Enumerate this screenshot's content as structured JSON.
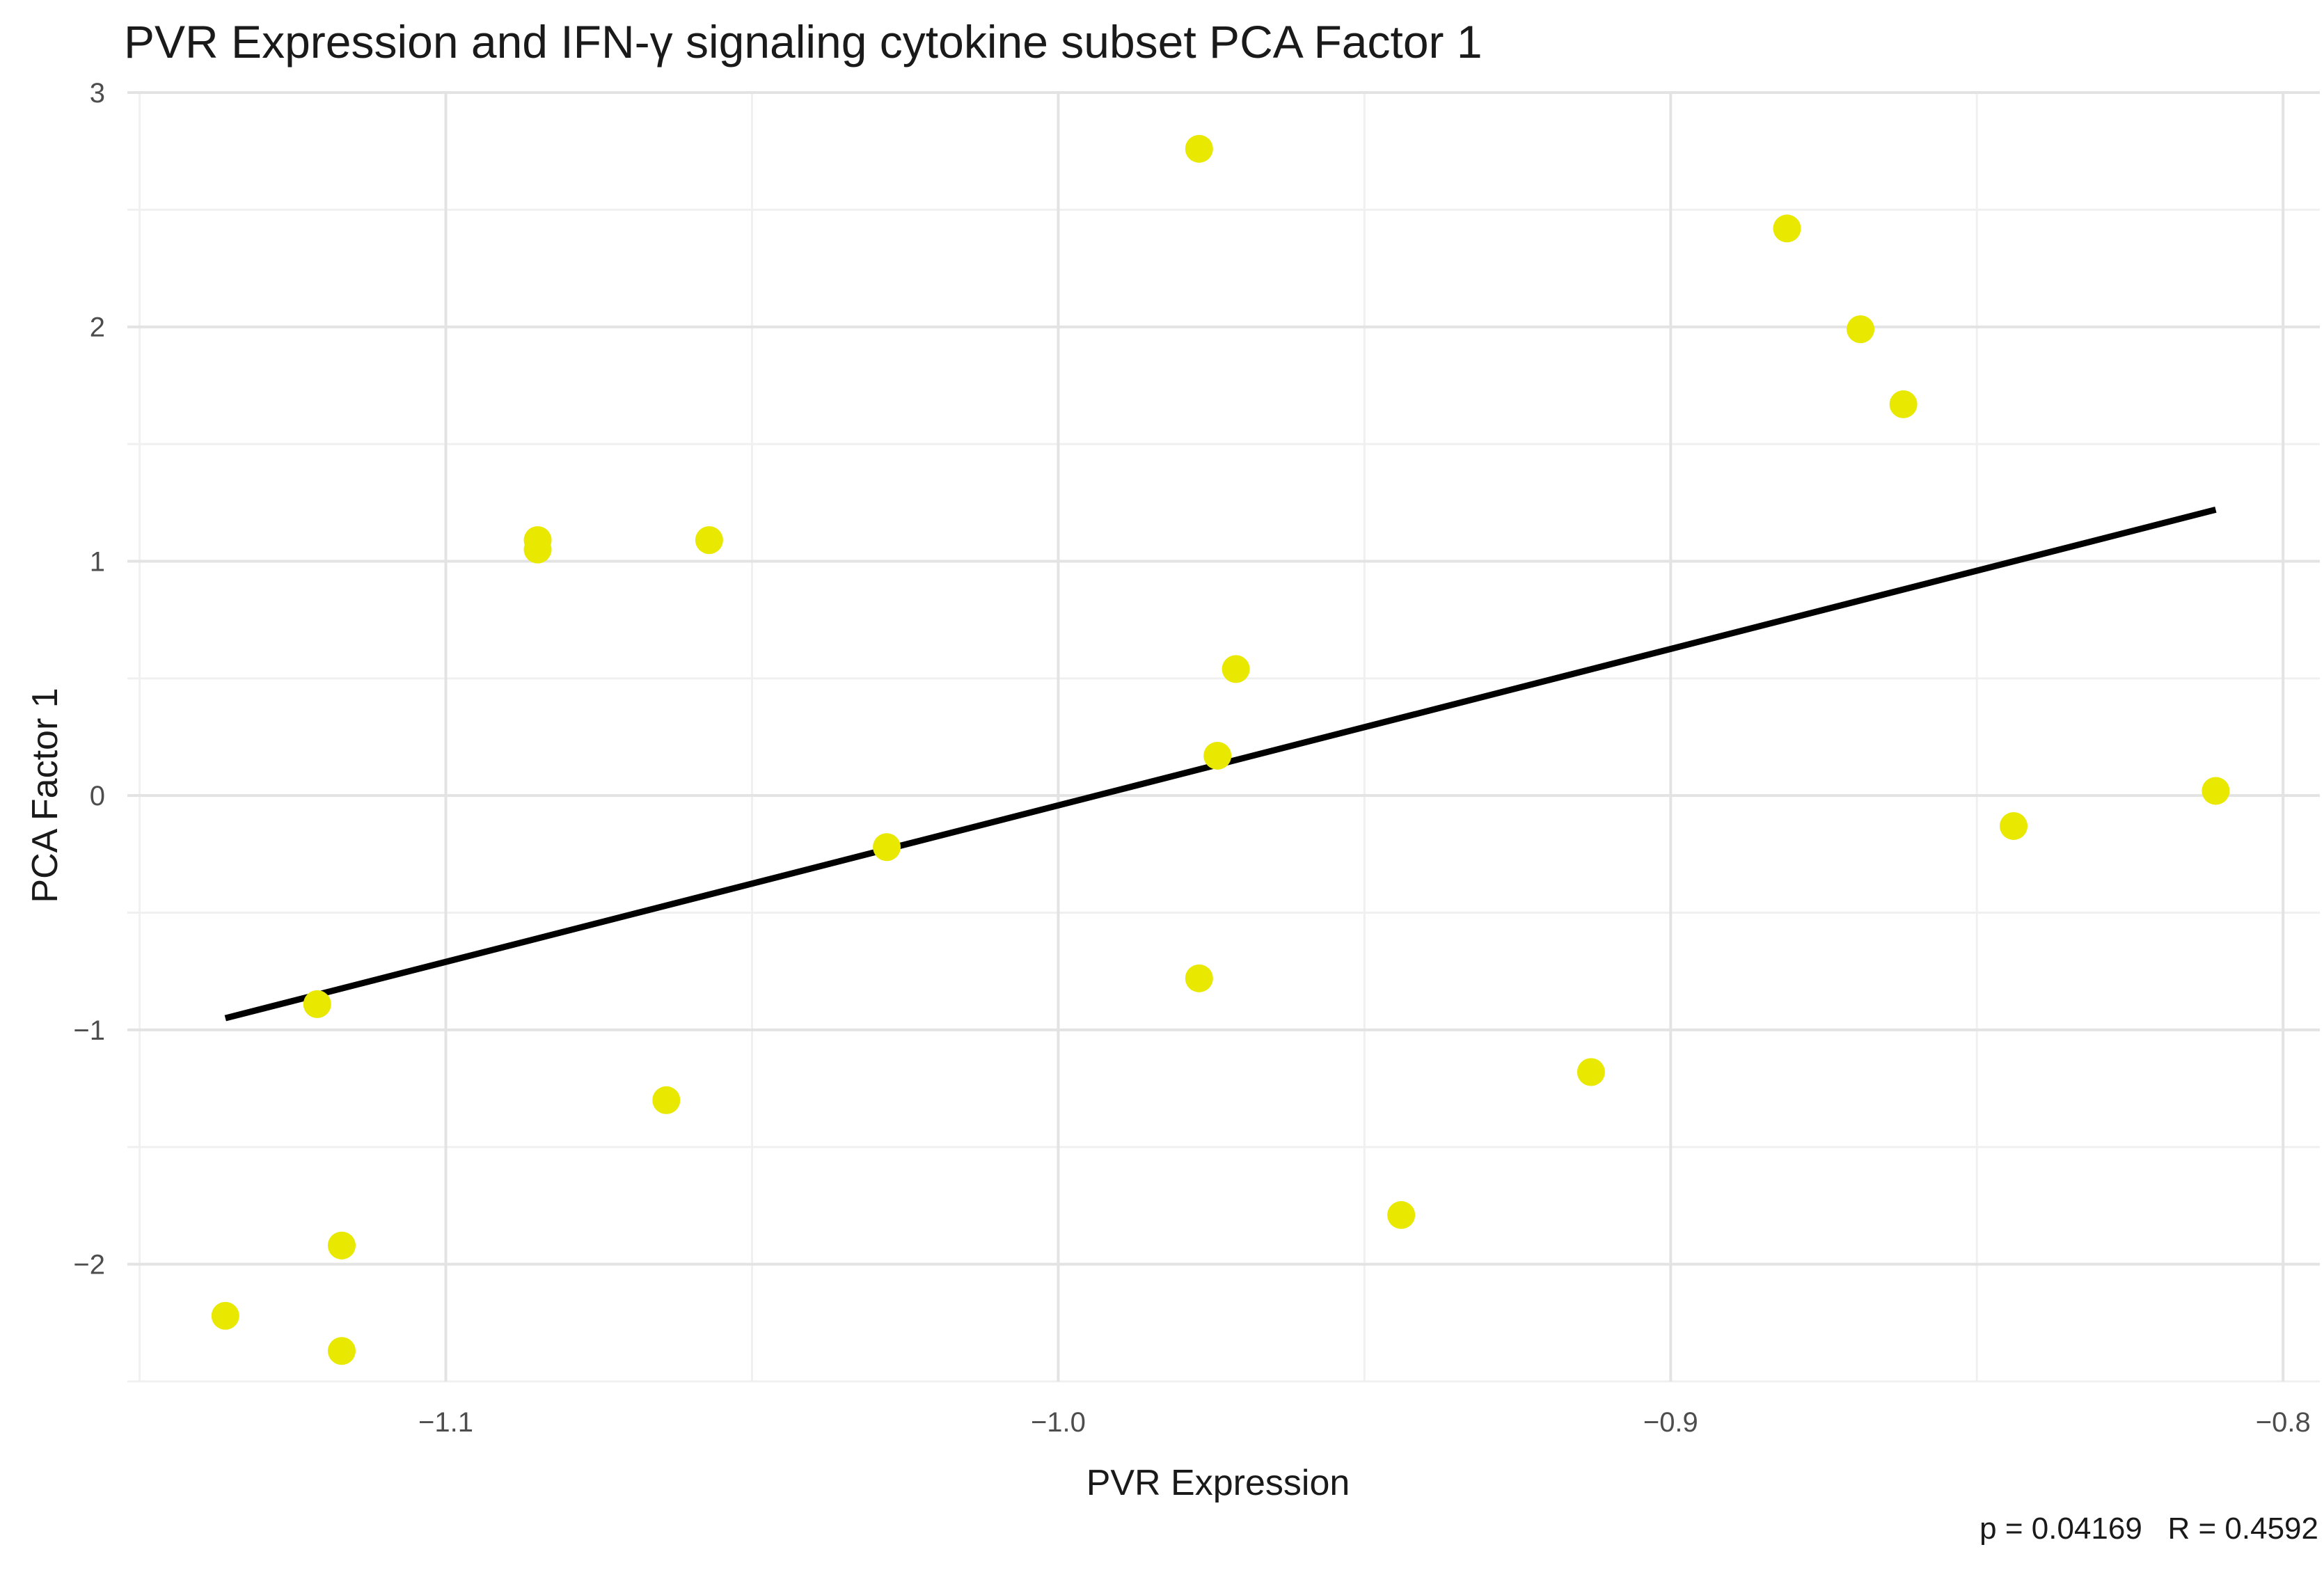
{
  "chart_data": {
    "type": "scatter",
    "title": "PVR Expression and IFN-γ signaling cytokine subset PCA Factor 1",
    "xlabel": "PVR Expression",
    "ylabel": "PCA Factor 1",
    "xlim": [
      -1.152,
      -0.794
    ],
    "ylim": [
      -2.5,
      3.0
    ],
    "x_ticks": [
      -1.1,
      -1.0,
      -0.9,
      -0.8
    ],
    "x_tick_labels": [
      "−1.1",
      "−1.0",
      "−0.9",
      "−0.8"
    ],
    "y_ticks": [
      -2,
      -1,
      0,
      1,
      2,
      3
    ],
    "y_tick_labels": [
      "−2",
      "−1",
      "0",
      "1",
      "2",
      "3"
    ],
    "grid": true,
    "legend": "none",
    "point_color": "#e8e800",
    "line_color": "#000000",
    "points": [
      {
        "x": -1.136,
        "y": -2.22
      },
      {
        "x": -1.117,
        "y": -2.37
      },
      {
        "x": -1.117,
        "y": -1.92
      },
      {
        "x": -1.121,
        "y": -0.89
      },
      {
        "x": -1.085,
        "y": 1.09
      },
      {
        "x": -1.085,
        "y": 1.05
      },
      {
        "x": -1.057,
        "y": 1.09
      },
      {
        "x": -1.064,
        "y": -1.3
      },
      {
        "x": -1.028,
        "y": -0.22
      },
      {
        "x": -0.977,
        "y": 2.76
      },
      {
        "x": -0.974,
        "y": 0.17
      },
      {
        "x": -0.971,
        "y": 0.54
      },
      {
        "x": -0.977,
        "y": -0.78
      },
      {
        "x": -0.944,
        "y": -1.79
      },
      {
        "x": -0.913,
        "y": -1.18
      },
      {
        "x": -0.881,
        "y": 2.42
      },
      {
        "x": -0.869,
        "y": 1.99
      },
      {
        "x": -0.862,
        "y": 1.67
      },
      {
        "x": -0.844,
        "y": -0.13
      },
      {
        "x": -0.811,
        "y": 0.02
      }
    ],
    "fit_line": [
      {
        "x": -1.136,
        "y": -0.95
      },
      {
        "x": -0.811,
        "y": 1.22
      }
    ],
    "annotation": "p = 0.04169   R = 0.4592"
  }
}
